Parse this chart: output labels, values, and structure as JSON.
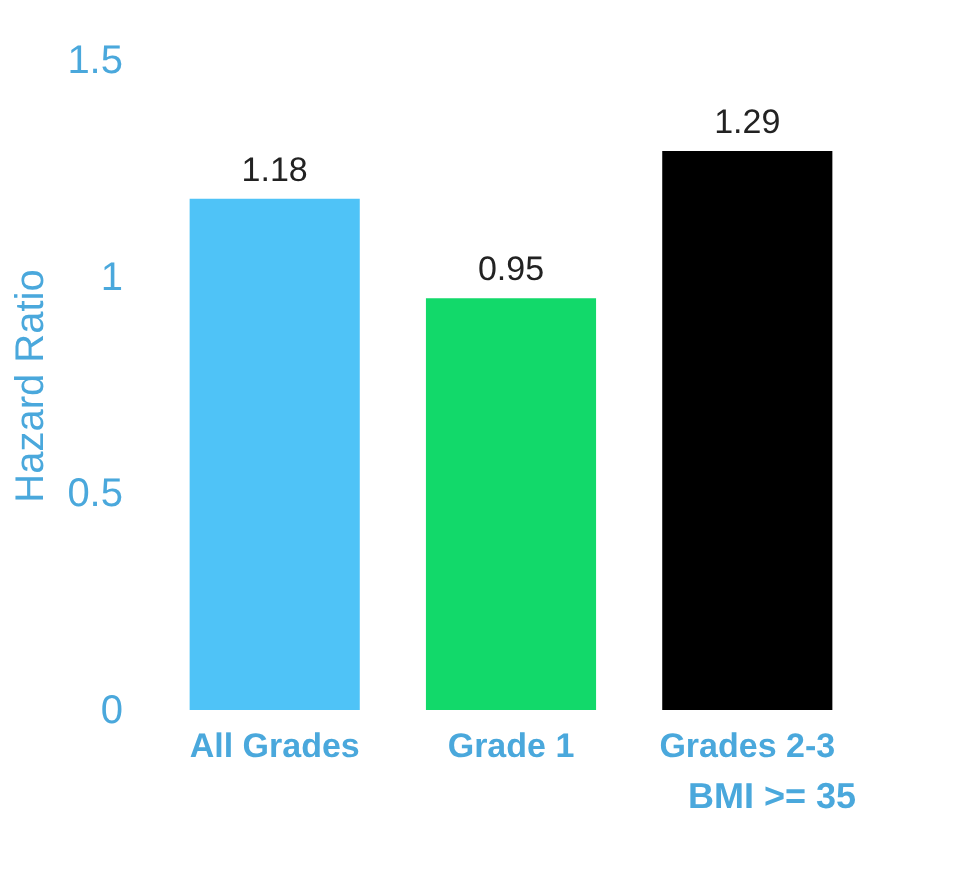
{
  "chart_data": {
    "type": "bar",
    "ylabel": "Hazard Ratio",
    "xlabel": "BMI >= 35",
    "categories": [
      "All Grades",
      "Grade 1",
      "Grades 2-3"
    ],
    "values": [
      1.18,
      0.95,
      1.29
    ],
    "colors": [
      "#4fc3f7",
      "#12d96a",
      "#000000"
    ],
    "ylim": [
      0,
      1.5
    ],
    "yticks": [
      0,
      0.5,
      1,
      1.5
    ],
    "data_labels": true,
    "grid": false
  }
}
